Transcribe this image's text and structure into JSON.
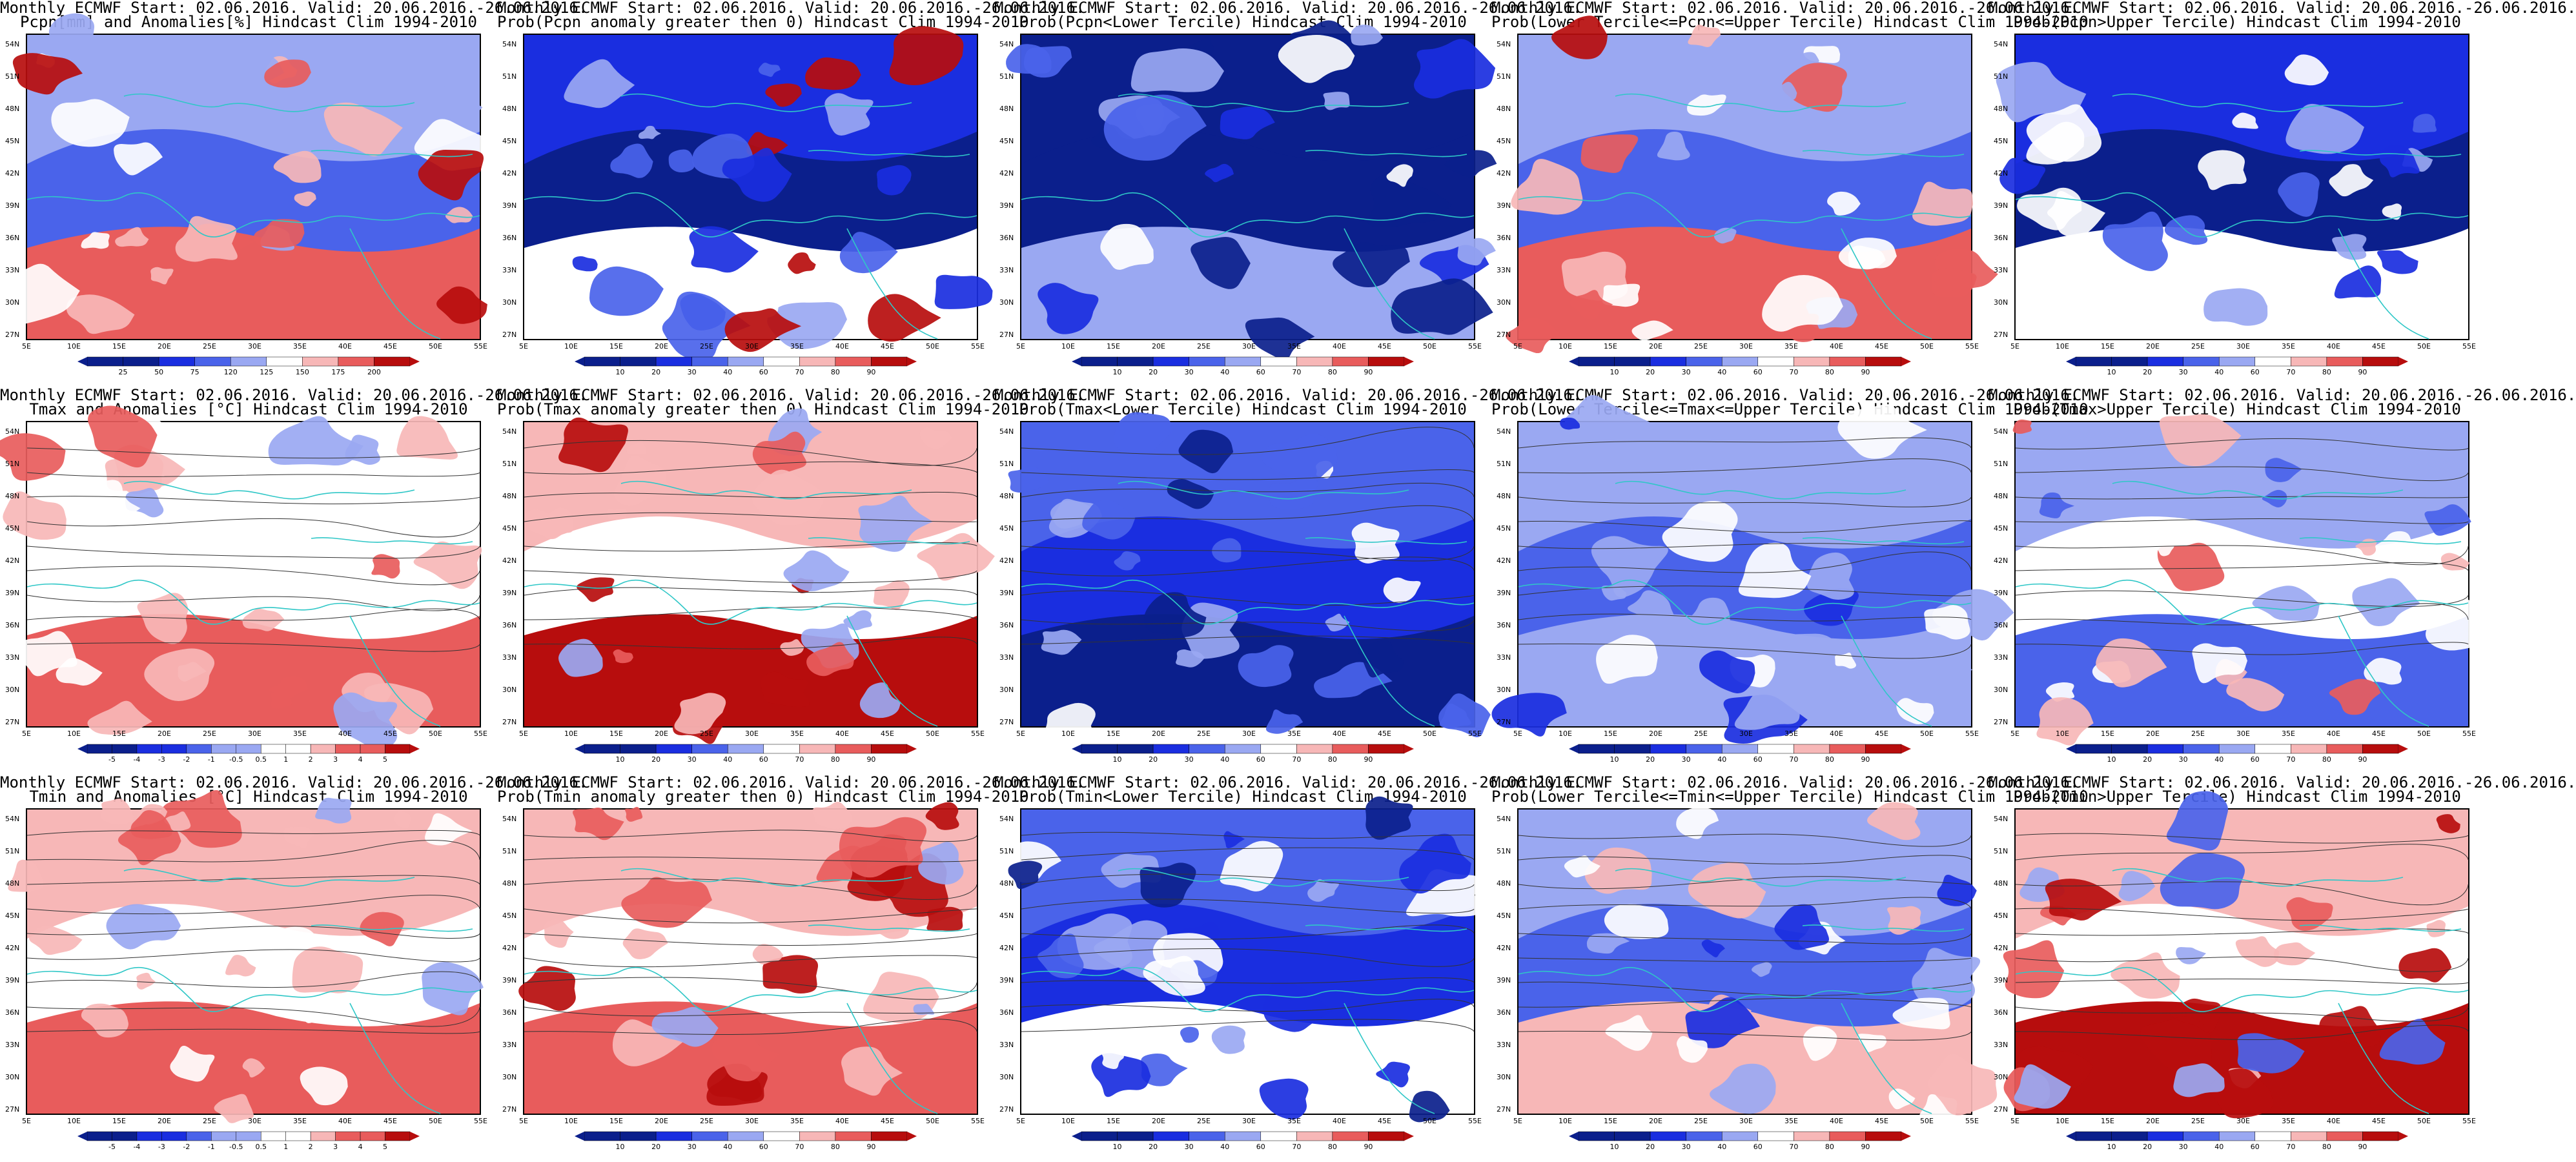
{
  "common": {
    "lat_ticks": [
      "54N",
      "51N",
      "48N",
      "45N",
      "42N",
      "39N",
      "36N",
      "33N",
      "30N",
      "27N"
    ],
    "lon_ticks": [
      "5E",
      "10E",
      "15E",
      "20E",
      "25E",
      "30E",
      "35E",
      "40E",
      "45E",
      "50E",
      "55E"
    ]
  },
  "colors": {
    "ocean": "#0b1f8c",
    "blue_dark": "#1a2ee0",
    "blue_mid": "#4a63ea",
    "blue_light": "#9aa8f2",
    "white": "#ffffff",
    "red_light": "#f7b7b7",
    "red_mid": "#e85c5c",
    "red_dark": "#b70d0d",
    "coast": "#2fc7c7",
    "contour": "#333333"
  },
  "panels": [
    {
      "title1": "Monthly ECMWF Start: 02.06.2016. Valid: 20.06.2016.-26.06.2016.",
      "title2": "Pcpn[mm] and Anomalies[%] Hindcast Clim 1994-2010",
      "colorbar_labels": [
        "25",
        "50",
        "75",
        "120",
        "125",
        "150",
        "175",
        "200"
      ]
    },
    {
      "title1": "Monthly ECMWF Start: 02.06.2016. Valid: 20.06.2016.-26.06.2016.",
      "title2": "Prob(Pcpn anomaly greater then 0) Hindcast Clim 1994-2010",
      "colorbar_labels": [
        "10",
        "20",
        "30",
        "40",
        "60",
        "70",
        "80",
        "90"
      ]
    },
    {
      "title1": "Monthly ECMWF Start: 02.06.2016. Valid: 20.06.2016.-26.06.2016.",
      "title2": "Prob(Pcpn<Lower Tercile) Hindcast Clim 1994-2010",
      "colorbar_labels": [
        "10",
        "20",
        "30",
        "40",
        "60",
        "70",
        "80",
        "90"
      ]
    },
    {
      "title1": "Monthly ECMWF Start: 02.06.2016. Valid: 20.06.2016.-26.06.2016.",
      "title2": "Prob(Lower Tercile<=Pcpn<=Upper Tercile) Hindcast Clim 1994-2010",
      "colorbar_labels": [
        "10",
        "20",
        "30",
        "40",
        "60",
        "70",
        "80",
        "90"
      ]
    },
    {
      "title1": "Monthly ECMWF Start: 02.06.2016. Valid: 20.06.2016.-26.06.2016.",
      "title2": "Prob(Pcpn>Upper Tercile) Hindcast Clim 1994-2010",
      "colorbar_labels": [
        "10",
        "20",
        "30",
        "40",
        "60",
        "70",
        "80",
        "90"
      ]
    },
    {
      "title1": "Monthly ECMWF Start: 02.06.2016. Valid: 20.06.2016.-26.06.2016.",
      "title2": "Tmax and Anomalies [°C] Hindcast Clim 1994-2010",
      "colorbar_labels": [
        "-5",
        "-4",
        "-3",
        "-2",
        "-1",
        "-0.5",
        "0.5",
        "1",
        "2",
        "3",
        "4",
        "5"
      ]
    },
    {
      "title1": "Monthly ECMWF Start: 02.06.2016. Valid: 20.06.2016.-26.06.2016.",
      "title2": "Prob(Tmax anomaly greater then 0) Hindcast Clim 1994-2010",
      "colorbar_labels": [
        "10",
        "20",
        "30",
        "40",
        "60",
        "70",
        "80",
        "90"
      ]
    },
    {
      "title1": "Monthly ECMWF Start: 02.06.2016. Valid: 20.06.2016.-26.06.2016.",
      "title2": "Prob(Tmax<Lower Tercile) Hindcast Clim 1994-2010",
      "colorbar_labels": [
        "10",
        "20",
        "30",
        "40",
        "60",
        "70",
        "80",
        "90"
      ]
    },
    {
      "title1": "Monthly ECMWF Start: 02.06.2016. Valid: 20.06.2016.-26.06.2016.",
      "title2": "Prob(Lower Tercile<=Tmax<=Upper Tercile) Hindcast Clim 1994-2010",
      "colorbar_labels": [
        "10",
        "20",
        "30",
        "40",
        "60",
        "70",
        "80",
        "90"
      ]
    },
    {
      "title1": "Monthly ECMWF Start: 02.06.2016. Valid: 20.06.2016.-26.06.2016.",
      "title2": "Prob(Tmax>Upper Tercile) Hindcast Clim 1994-2010",
      "colorbar_labels": [
        "10",
        "20",
        "30",
        "40",
        "60",
        "70",
        "80",
        "90"
      ]
    },
    {
      "title1": "Monthly ECMWF Start: 02.06.2016. Valid: 20.06.2016.-26.06.2016.",
      "title2": "Tmin and Anomalies [°C] Hindcast Clim 1994-2010",
      "colorbar_labels": [
        "-5",
        "-4",
        "-3",
        "-2",
        "-1",
        "-0.5",
        "0.5",
        "1",
        "2",
        "3",
        "4",
        "5"
      ]
    },
    {
      "title1": "Monthly ECMWF Start: 02.06.2016. Valid: 20.06.2016.-26.06.2016.",
      "title2": "Prob(Tmin anomaly greater then 0) Hindcast Clim 1994-2010",
      "colorbar_labels": [
        "10",
        "20",
        "30",
        "40",
        "60",
        "70",
        "80",
        "90"
      ]
    },
    {
      "title1": "Monthly ECMWF Start: 02.06.2016. Valid: 20.06.2016.-26.06.2016.",
      "title2": "Prob(Tmin<Lower Tercile) Hindcast Clim 1994-2010",
      "colorbar_labels": [
        "10",
        "20",
        "30",
        "40",
        "60",
        "70",
        "80",
        "90"
      ]
    },
    {
      "title1": "Monthly ECMWF Start: 02.06.2016. Valid: 20.06.2016.-26.06.2016.",
      "title2": "Prob(Lower Tercile<=Tmin<=Upper Tercile) Hindcast Clim 1994-2010",
      "colorbar_labels": [
        "10",
        "20",
        "30",
        "40",
        "60",
        "70",
        "80",
        "90"
      ]
    },
    {
      "title1": "Monthly ECMWF Start: 02.06.2016. Valid: 20.06.2016.-26.06.2016.",
      "title2": "Prob(Tmin>Upper Tercile) Hindcast Clim 1994-2010",
      "colorbar_labels": [
        "10",
        "20",
        "30",
        "40",
        "60",
        "70",
        "80",
        "90"
      ]
    }
  ]
}
